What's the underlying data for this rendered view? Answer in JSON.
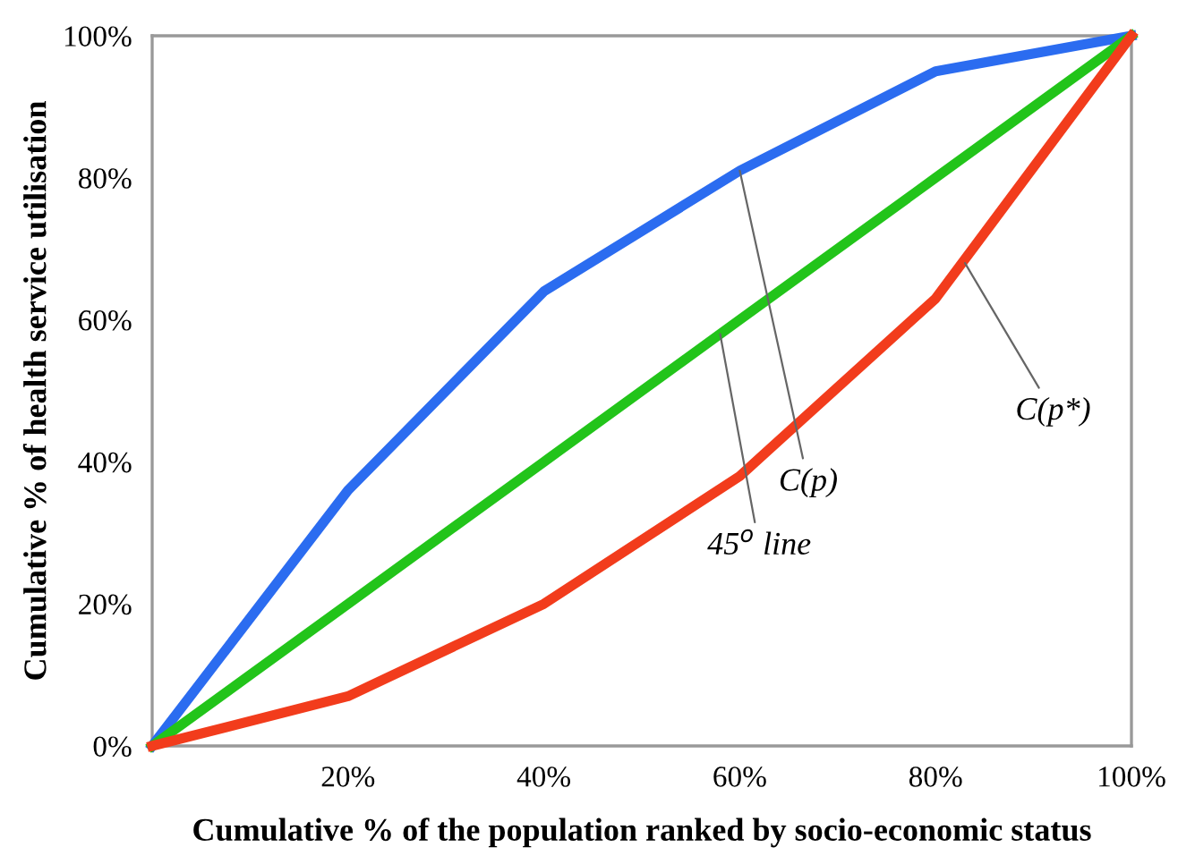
{
  "chart_data": {
    "type": "line",
    "xlabel": "Cumulative % of the population ranked by socio-economic status",
    "ylabel": "Cumulative % of health service utilisation",
    "x": [
      0,
      20,
      40,
      60,
      80,
      100
    ],
    "series": [
      {
        "color": "#2b6cf0",
        "values": [
          0,
          36,
          64,
          81,
          95,
          100
        ]
      },
      {
        "color": "#22c41a",
        "values": [
          0,
          20,
          40,
          60,
          80,
          100
        ]
      },
      {
        "color": "#f23c1c",
        "values": [
          0,
          7,
          20,
          38,
          63,
          100
        ]
      }
    ],
    "xlim": [
      0,
      100
    ],
    "ylim": [
      0,
      100
    ],
    "xticks": [
      {
        "value": 0,
        "label": null
      },
      {
        "value": 20,
        "label": "20%"
      },
      {
        "value": 40,
        "label": "40%"
      },
      {
        "value": 60,
        "label": "60%"
      },
      {
        "value": 80,
        "label": "80%"
      },
      {
        "value": 100,
        "label": "100%"
      }
    ],
    "yticks": [
      {
        "value": 0,
        "label": "0%"
      },
      {
        "value": 20,
        "label": "20%"
      },
      {
        "value": 40,
        "label": "40%"
      },
      {
        "value": 60,
        "label": "60%"
      },
      {
        "value": 80,
        "label": "80%"
      },
      {
        "value": 100,
        "label": "100%"
      }
    ],
    "grid": false,
    "marker": "none",
    "line_style": "solid",
    "annotations": [
      {
        "text": "C(p)",
        "x": 60,
        "y": 81
      },
      {
        "text": "C(p*)",
        "x": 83,
        "y": 68
      },
      {
        "text": "45$^{o}$ line",
        "x": 58,
        "y": 58
      }
    ]
  }
}
